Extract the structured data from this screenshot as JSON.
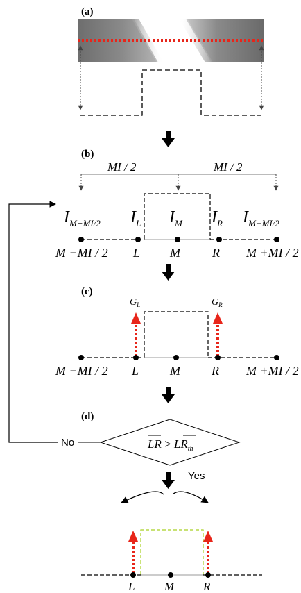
{
  "panels": {
    "a": "(a)",
    "b": "(b)",
    "c": "(c)",
    "d": "(d)"
  },
  "labels": {
    "half_mi_left": "MI / 2",
    "half_mi_right": "MI / 2",
    "i_left_far": "I",
    "i_left_far_sub": "M−MI/2",
    "i_l": "I",
    "i_l_sub": "L",
    "i_m": "I",
    "i_m_sub": "M",
    "i_r": "I",
    "i_r_sub": "R",
    "i_right_far": "I",
    "i_right_far_sub": "M+MI/2",
    "pt_left_far": "M −MI / 2",
    "pt_l": "L",
    "pt_m": "M",
    "pt_r": "R",
    "pt_right_far": "M +MI / 2",
    "g_l": "G",
    "g_l_sub": "L",
    "g_r": "G",
    "g_r_sub": "R",
    "no": "No",
    "yes": "Yes",
    "cond_lhs": "LR",
    "cond_op": " > ",
    "cond_rhs": "LR",
    "cond_rhs_sub": "th"
  },
  "colors": {
    "red_dotted": "#e8251a",
    "green_dashed": "#a8d020",
    "dashed_black": "#000000",
    "gray_arrow": "#555555"
  }
}
